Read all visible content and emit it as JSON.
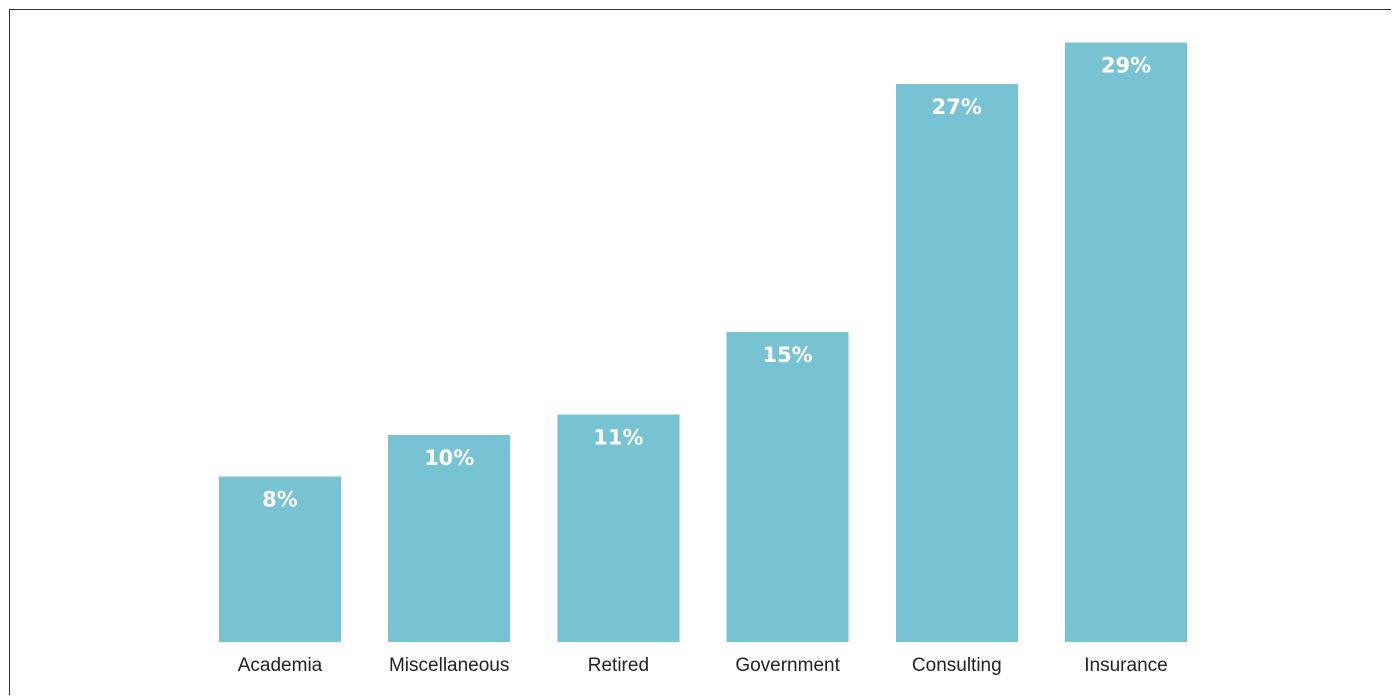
{
  "chart_data": {
    "type": "bar",
    "title": "",
    "xlabel": "",
    "ylabel": "",
    "categories": [
      "Academia",
      "Miscellaneous",
      "Retired",
      "Government",
      "Consulting",
      "Insurance"
    ],
    "values": [
      8,
      10,
      11,
      15,
      27,
      29
    ],
    "data_labels": [
      "8%",
      "10%",
      "11%",
      "15%",
      "27%",
      "29%"
    ],
    "value_unit": "%",
    "ylim": [
      0,
      29.6
    ],
    "grid": false,
    "legend": "none",
    "colors": {
      "bar": "#78c3d3",
      "bar_label": "#ffffff",
      "category_label": "#222222",
      "border": "#333333"
    }
  }
}
